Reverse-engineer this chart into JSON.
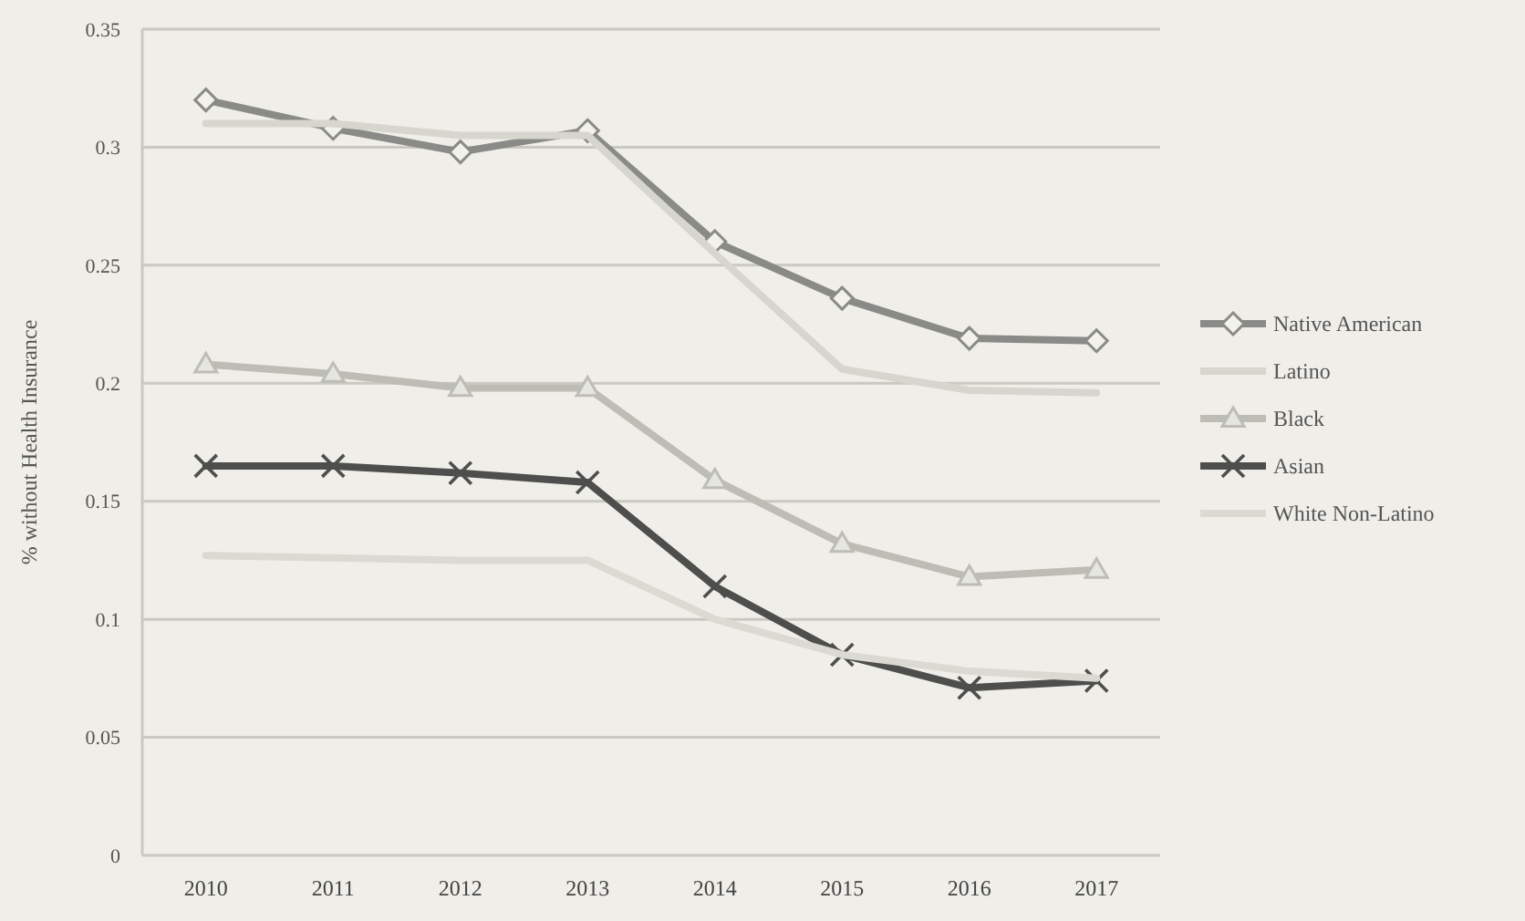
{
  "chart_data": {
    "type": "line",
    "ylabel": "% without Health Insurance",
    "categories": [
      "2010",
      "2011",
      "2012",
      "2013",
      "2014",
      "2015",
      "2016",
      "2017"
    ],
    "ylim": [
      0,
      0.35
    ],
    "yticks": [
      0,
      0.05,
      0.1,
      0.15,
      0.2,
      0.25,
      0.3,
      0.35
    ],
    "grid": "y",
    "legend": "right",
    "line_style": "solid",
    "series": [
      {
        "name": "Native American",
        "color": "#8a8a86",
        "marker": "diamond",
        "values": [
          0.32,
          0.308,
          0.298,
          0.307,
          0.26,
          0.236,
          0.219,
          0.218
        ]
      },
      {
        "name": "Latino",
        "color": "#d6d6ce",
        "marker": "none",
        "values": [
          0.31,
          0.31,
          0.305,
          0.305,
          0.255,
          0.206,
          0.197,
          0.196
        ]
      },
      {
        "name": "Black",
        "color": "#bdbdb5",
        "marker": "triangle",
        "values": [
          0.208,
          0.204,
          0.198,
          0.198,
          0.159,
          0.132,
          0.118,
          0.121
        ]
      },
      {
        "name": "Asian",
        "color": "#4e4e4c",
        "marker": "cross",
        "values": [
          0.165,
          0.165,
          0.162,
          0.158,
          0.114,
          0.085,
          0.071,
          0.074
        ]
      },
      {
        "name": "White Non-Latino",
        "color": "#dadad2",
        "marker": "none",
        "values": [
          0.127,
          0.126,
          0.125,
          0.125,
          0.1,
          0.085,
          0.078,
          0.075
        ]
      }
    ]
  }
}
